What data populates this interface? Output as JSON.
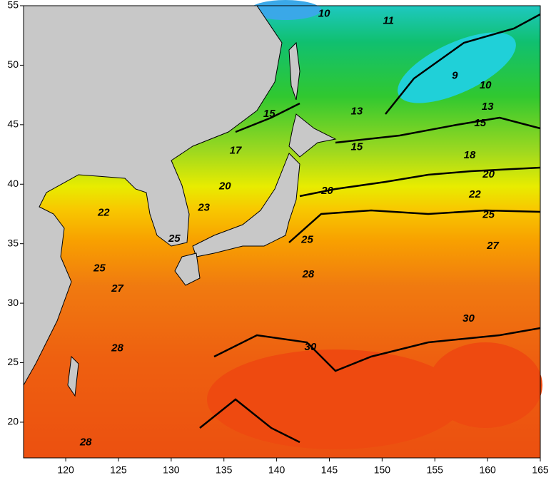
{
  "map": {
    "xlim": [
      116,
      165
    ],
    "ylim": [
      17,
      55
    ],
    "xticks": [
      120,
      125,
      130,
      135,
      140,
      145,
      150,
      155,
      160,
      165
    ],
    "yticks": [
      20,
      25,
      30,
      35,
      40,
      45,
      50,
      55
    ],
    "contour_labels": [
      {
        "value": 10,
        "lon": 144.5,
        "lat": 54.3
      },
      {
        "value": 11,
        "lon": 150.6,
        "lat": 53.7
      },
      {
        "value": 9,
        "lon": 156.9,
        "lat": 49.1
      },
      {
        "value": 10,
        "lon": 159.8,
        "lat": 48.3
      },
      {
        "value": 13,
        "lon": 147.6,
        "lat": 46.1
      },
      {
        "value": 13,
        "lon": 160.0,
        "lat": 46.5
      },
      {
        "value": 15,
        "lon": 139.3,
        "lat": 45.9
      },
      {
        "value": 15,
        "lon": 159.3,
        "lat": 45.1
      },
      {
        "value": 15,
        "lon": 147.6,
        "lat": 43.1
      },
      {
        "value": 17,
        "lon": 136.1,
        "lat": 42.8
      },
      {
        "value": 18,
        "lon": 158.3,
        "lat": 42.4
      },
      {
        "value": 20,
        "lon": 135.1,
        "lat": 39.8
      },
      {
        "value": 20,
        "lon": 144.8,
        "lat": 39.4
      },
      {
        "value": 20,
        "lon": 160.1,
        "lat": 40.8
      },
      {
        "value": 22,
        "lon": 123.6,
        "lat": 37.6
      },
      {
        "value": 22,
        "lon": 158.8,
        "lat": 39.1
      },
      {
        "value": 23,
        "lon": 133.1,
        "lat": 38.0
      },
      {
        "value": 25,
        "lon": 160.1,
        "lat": 37.4
      },
      {
        "value": 25,
        "lon": 142.9,
        "lat": 35.3
      },
      {
        "value": 25,
        "lon": 123.2,
        "lat": 32.9
      },
      {
        "value": 25,
        "lon": 130.3,
        "lat": 35.4
      },
      {
        "value": 27,
        "lon": 160.5,
        "lat": 34.8
      },
      {
        "value": 27,
        "lon": 124.9,
        "lat": 31.2
      },
      {
        "value": 28,
        "lon": 143.0,
        "lat": 32.4
      },
      {
        "value": 28,
        "lon": 124.9,
        "lat": 26.2
      },
      {
        "value": 28,
        "lon": 121.9,
        "lat": 18.3
      },
      {
        "value": 30,
        "lon": 158.2,
        "lat": 28.7
      },
      {
        "value": 30,
        "lon": 143.2,
        "lat": 26.3
      }
    ]
  }
}
